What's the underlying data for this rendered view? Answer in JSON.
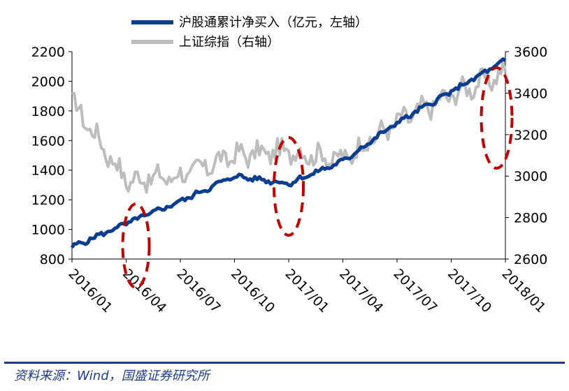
{
  "chart_data": {
    "type": "line",
    "x": [
      "2016/01",
      "2016/04",
      "2016/07",
      "2016/10",
      "2017/01",
      "2017/04",
      "2017/07",
      "2017/10",
      "2018/01"
    ],
    "x_tick_labels": [
      "2016/01",
      "2016/04",
      "2016/07",
      "2016/10",
      "2017/01",
      "2017/04",
      "2017/07",
      "2017/10",
      "2018/01"
    ],
    "series": [
      {
        "name": "沪股通累计净买入（亿元，左轴）",
        "axis": "left",
        "color": "#0b3d91",
        "values": [
          880,
          1040,
          1190,
          1360,
          1310,
          1460,
          1720,
          1930,
          2140
        ]
      },
      {
        "name": "上证综指（右轴）",
        "axis": "right",
        "color": "#bdbdbd",
        "values": [
          3360,
          2980,
          3000,
          3100,
          3120,
          3080,
          3260,
          3390,
          3500
        ]
      }
    ],
    "y_left": {
      "ticks": [
        "800",
        "1000",
        "1200",
        "1400",
        "1600",
        "1800",
        "2000",
        "2200"
      ],
      "ylim": [
        800,
        2200
      ]
    },
    "y_right": {
      "ticks": [
        "2600",
        "2800",
        "3000",
        "3200",
        "3400",
        "3600"
      ],
      "ylim": [
        2600,
        3600
      ]
    },
    "annotations": [
      "dashed-ellipse 2016/04",
      "dashed-ellipse 2017/01",
      "dashed-ellipse 2017/12"
    ],
    "annotation_color": "#c00000",
    "legend_placement": "top"
  },
  "footer": {
    "source": "资料来源：Wind，国盛证券研究所"
  },
  "colors": {
    "primary": "#0b3d91",
    "secondary": "#bdbdbd",
    "highlight": "#c00000",
    "footer": "#1f3c88"
  }
}
